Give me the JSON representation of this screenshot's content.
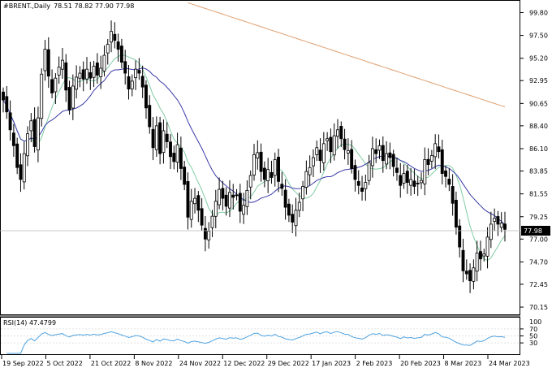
{
  "header": {
    "symbol": "#BRENT.",
    "timeframe": "Daily",
    "ohlc": "78.51 78.82 77.90 77.98"
  },
  "current_price": "77.98",
  "rsi_panel": {
    "label": "RSI(14) 47.4799",
    "levels": [
      70,
      50,
      30
    ],
    "color": "#4fa3e0"
  },
  "colors": {
    "bull_body": "#ffffff",
    "bear_body": "#000000",
    "ma_fast": "#7fcca4",
    "ma_mid": "#3a3aa8",
    "ma_slow": "#e0a070"
  },
  "chart_data": {
    "type": "candlestick",
    "price_axis_ticks": [
      "99.80",
      "97.50",
      "95.20",
      "92.95",
      "90.65",
      "88.40",
      "86.10",
      "83.85",
      "81.55",
      "79.25",
      "77.00",
      "74.70",
      "72.45",
      "70.15"
    ],
    "date_axis_ticks": [
      "19 Sep 2022",
      "5 Oct 2022",
      "21 Oct 2022",
      "8 Nov 2022",
      "24 Nov 2022",
      "12 Dec 2022",
      "29 Dec 2022",
      "17 Jan 2023",
      "2 Feb 2023",
      "20 Feb 2023",
      "8 Mar 2023",
      "24 Mar 2023"
    ],
    "candles_close": [
      91.0,
      89.8,
      88.0,
      86.4,
      84.2,
      83.0,
      85.6,
      87.6,
      88.9,
      86.3,
      89.2,
      93.6,
      96.1,
      93.4,
      91.7,
      93.2,
      94.3,
      95.0,
      92.0,
      90.0,
      92.4,
      93.3,
      93.7,
      93.1,
      94.1,
      93.2,
      94.4,
      93.5,
      94.2,
      95.5,
      96.6,
      97.9,
      97.0,
      96.1,
      94.8,
      93.7,
      92.1,
      92.9,
      94.1,
      93.7,
      92.3,
      90.2,
      88.3,
      86.2,
      88.4,
      85.6,
      87.9,
      86.8,
      85.3,
      84.8,
      86.5,
      84.1,
      82.5,
      79.2,
      80.8,
      81.1,
      79.9,
      78.4,
      77.0,
      77.8,
      79.3,
      80.8,
      82.0,
      81.1,
      80.3,
      81.7,
      81.2,
      81.4,
      79.8,
      80.4,
      81.9,
      83.4,
      85.5,
      85.7,
      83.8,
      83.0,
      84.0,
      83.2,
      85.0,
      82.8,
      82.1,
      80.2,
      79.4,
      78.7,
      79.9,
      80.7,
      82.3,
      83.8,
      84.2,
      85.2,
      86.2,
      84.9,
      86.6,
      87.1,
      85.8,
      87.4,
      88.0,
      87.1,
      86.0,
      85.9,
      84.1,
      83.0,
      82.4,
      81.8,
      82.7,
      84.7,
      86.1,
      85.6,
      86.4,
      84.9,
      85.6,
      85.2,
      84.3,
      83.7,
      82.4,
      83.6,
      82.7,
      83.0,
      82.3,
      82.6,
      82.9,
      85.0,
      84.5,
      85.4,
      86.6,
      85.8,
      83.6,
      83.3,
      82.5,
      80.6,
      78.2,
      76.2,
      73.8,
      73.5,
      72.8,
      74.1,
      75.6,
      75.0,
      75.5,
      77.2,
      78.5,
      79.1,
      78.5,
      78.6,
      77.98
    ],
    "moving_averages": [
      "ma_fast",
      "ma_mid",
      "ma_slow"
    ],
    "rsi_range": [
      0,
      100
    ],
    "ylim": [
      69.5,
      100.9
    ]
  }
}
